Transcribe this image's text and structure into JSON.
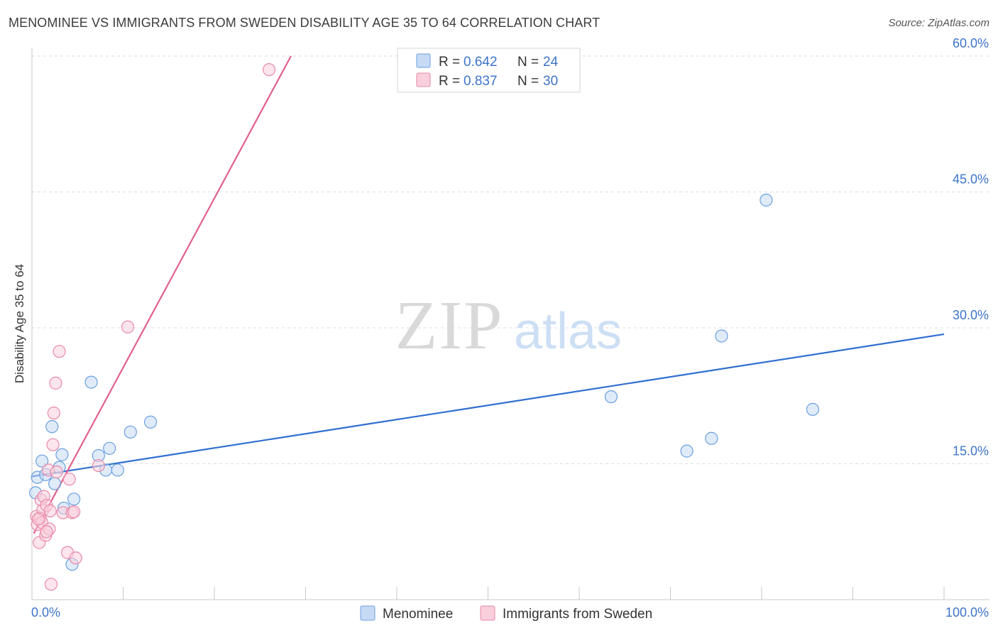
{
  "title": "MENOMINEE VS IMMIGRANTS FROM SWEDEN DISABILITY AGE 35 TO 64 CORRELATION CHART",
  "source": "Source: ZipAtlas.com",
  "watermark": {
    "zip": "ZIP",
    "atlas": "atlas"
  },
  "colors": {
    "blue": "#6a9fe0",
    "blue_fill": "#c6daf5",
    "blue_line": "#2f6fd0",
    "pink": "#e889a9",
    "pink_fill": "#f9cfdc",
    "pink_line": "#e0608d",
    "axis_text": "#3d74c9",
    "grid": "#dddddd"
  },
  "chart_data": {
    "type": "scatter",
    "xlabel": "",
    "ylabel": "Disability Age 35 to 64",
    "xlim": [
      0,
      100
    ],
    "ylim": [
      0,
      62
    ],
    "x_tick_labels": [
      "0.0%",
      "100.0%"
    ],
    "y_ticks": [
      15,
      30,
      45,
      60
    ],
    "y_tick_labels": [
      "15.0%",
      "30.0%",
      "45.0%",
      "60.0%"
    ],
    "legend_top": [
      {
        "r_label": "R = ",
        "r": "0.642",
        "n_label": "N = ",
        "n": "24"
      },
      {
        "r_label": "R = ",
        "r": "0.837",
        "n_label": "N = ",
        "n": "30"
      }
    ],
    "series": [
      {
        "name": "Menominee",
        "color": "blue",
        "trend": {
          "x0": 0,
          "y0": 13.6,
          "x1": 100,
          "y1": 29.3
        },
        "points": [
          [
            0.4,
            11.8
          ],
          [
            0.6,
            13.5
          ],
          [
            1.1,
            15.3
          ],
          [
            1.5,
            13.8
          ],
          [
            2.2,
            19.1
          ],
          [
            2.5,
            12.8
          ],
          [
            3.0,
            14.6
          ],
          [
            3.3,
            16.0
          ],
          [
            3.5,
            10.1
          ],
          [
            4.6,
            11.1
          ],
          [
            4.4,
            3.9
          ],
          [
            6.5,
            24.0
          ],
          [
            7.3,
            15.9
          ],
          [
            8.1,
            14.3
          ],
          [
            8.5,
            16.7
          ],
          [
            9.4,
            14.3
          ],
          [
            10.8,
            18.5
          ],
          [
            13.0,
            19.6
          ],
          [
            63.5,
            22.4
          ],
          [
            71.8,
            16.4
          ],
          [
            74.5,
            17.8
          ],
          [
            75.6,
            29.1
          ],
          [
            80.5,
            44.1
          ],
          [
            85.6,
            21.0
          ]
        ]
      },
      {
        "name": "Immigrants from Sweden",
        "color": "pink",
        "trend": {
          "x0": 0.2,
          "y0": 7.3,
          "x1": 28.4,
          "y1": 60.0
        },
        "points": [
          [
            0.5,
            9.2
          ],
          [
            0.6,
            8.3
          ],
          [
            0.8,
            6.3
          ],
          [
            0.9,
            9.0
          ],
          [
            1.0,
            11.0
          ],
          [
            1.1,
            8.5
          ],
          [
            1.2,
            9.9
          ],
          [
            1.3,
            11.4
          ],
          [
            1.5,
            7.1
          ],
          [
            1.6,
            10.4
          ],
          [
            1.8,
            14.3
          ],
          [
            1.9,
            7.8
          ],
          [
            2.0,
            9.8
          ],
          [
            2.1,
            1.7
          ],
          [
            2.3,
            17.1
          ],
          [
            2.4,
            20.6
          ],
          [
            2.6,
            23.9
          ],
          [
            2.7,
            14.1
          ],
          [
            3.0,
            27.4
          ],
          [
            3.4,
            9.6
          ],
          [
            3.9,
            5.2
          ],
          [
            4.1,
            13.3
          ],
          [
            4.4,
            9.6
          ],
          [
            4.6,
            9.7
          ],
          [
            4.8,
            4.6
          ],
          [
            7.3,
            14.8
          ],
          [
            10.5,
            30.1
          ],
          [
            26.0,
            58.5
          ],
          [
            1.6,
            7.5
          ],
          [
            0.7,
            8.9
          ]
        ]
      }
    ]
  }
}
